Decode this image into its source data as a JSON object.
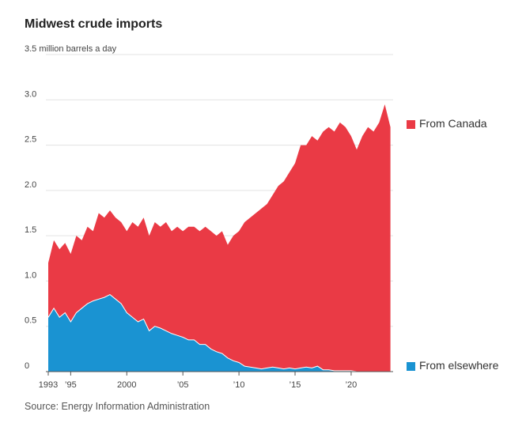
{
  "title": "Midwest crude imports",
  "source": "Source: Energy Information Administration",
  "chart_data": {
    "type": "area",
    "stacked": true,
    "title": "Midwest crude imports",
    "ylabel": "million barrels a day",
    "ytick_top_label": "3.5 million barrels a day",
    "ylim": [
      0,
      3.5
    ],
    "yticks": [
      {
        "value": 0,
        "label": "0"
      },
      {
        "value": 0.5,
        "label": "0.5"
      },
      {
        "value": 1.0,
        "label": "1.0"
      },
      {
        "value": 1.5,
        "label": "1.5"
      },
      {
        "value": 2.0,
        "label": "2.0"
      },
      {
        "value": 2.5,
        "label": "2.5"
      },
      {
        "value": 3.0,
        "label": "3.0"
      },
      {
        "value": 3.5,
        "label": "3.5 million barrels a day"
      }
    ],
    "xlim": [
      1993,
      2023.6
    ],
    "xticks": [
      {
        "value": 1993,
        "label": "1993"
      },
      {
        "value": 1995,
        "label": "’95"
      },
      {
        "value": 2000,
        "label": "2000"
      },
      {
        "value": 2005,
        "label": "’05"
      },
      {
        "value": 2010,
        "label": "’10"
      },
      {
        "value": 2015,
        "label": "’15"
      },
      {
        "value": 2020,
        "label": "’20"
      }
    ],
    "grid": true,
    "legend_placement": "right",
    "series": [
      {
        "name": "From Canada",
        "color": "#ea3a45",
        "note": "values are stacked totals (total imports)",
        "points": [
          [
            1993.0,
            1.2
          ],
          [
            1993.5,
            1.45
          ],
          [
            1994.0,
            1.35
          ],
          [
            1994.5,
            1.42
          ],
          [
            1995.0,
            1.3
          ],
          [
            1995.5,
            1.5
          ],
          [
            1996.0,
            1.45
          ],
          [
            1996.5,
            1.6
          ],
          [
            1997.0,
            1.55
          ],
          [
            1997.5,
            1.75
          ],
          [
            1998.0,
            1.7
          ],
          [
            1998.5,
            1.78
          ],
          [
            1999.0,
            1.7
          ],
          [
            1999.5,
            1.65
          ],
          [
            2000.0,
            1.55
          ],
          [
            2000.5,
            1.65
          ],
          [
            2001.0,
            1.6
          ],
          [
            2001.5,
            1.7
          ],
          [
            2002.0,
            1.5
          ],
          [
            2002.5,
            1.65
          ],
          [
            2003.0,
            1.6
          ],
          [
            2003.5,
            1.65
          ],
          [
            2004.0,
            1.55
          ],
          [
            2004.5,
            1.6
          ],
          [
            2005.0,
            1.55
          ],
          [
            2005.5,
            1.6
          ],
          [
            2006.0,
            1.6
          ],
          [
            2006.5,
            1.55
          ],
          [
            2007.0,
            1.6
          ],
          [
            2007.5,
            1.55
          ],
          [
            2008.0,
            1.5
          ],
          [
            2008.5,
            1.55
          ],
          [
            2009.0,
            1.4
          ],
          [
            2009.5,
            1.5
          ],
          [
            2010.0,
            1.55
          ],
          [
            2010.5,
            1.65
          ],
          [
            2011.0,
            1.7
          ],
          [
            2011.5,
            1.75
          ],
          [
            2012.0,
            1.8
          ],
          [
            2012.5,
            1.85
          ],
          [
            2013.0,
            1.95
          ],
          [
            2013.5,
            2.05
          ],
          [
            2014.0,
            2.1
          ],
          [
            2014.5,
            2.2
          ],
          [
            2015.0,
            2.3
          ],
          [
            2015.5,
            2.5
          ],
          [
            2016.0,
            2.5
          ],
          [
            2016.5,
            2.6
          ],
          [
            2017.0,
            2.55
          ],
          [
            2017.5,
            2.65
          ],
          [
            2018.0,
            2.7
          ],
          [
            2018.5,
            2.65
          ],
          [
            2019.0,
            2.75
          ],
          [
            2019.5,
            2.7
          ],
          [
            2020.0,
            2.6
          ],
          [
            2020.5,
            2.45
          ],
          [
            2021.0,
            2.6
          ],
          [
            2021.5,
            2.7
          ],
          [
            2022.0,
            2.65
          ],
          [
            2022.5,
            2.75
          ],
          [
            2023.0,
            2.95
          ],
          [
            2023.5,
            2.7
          ]
        ]
      },
      {
        "name": "From elsewhere",
        "color": "#1a93d2",
        "points": [
          [
            1993.0,
            0.6
          ],
          [
            1993.5,
            0.7
          ],
          [
            1994.0,
            0.6
          ],
          [
            1994.5,
            0.65
          ],
          [
            1995.0,
            0.55
          ],
          [
            1995.5,
            0.65
          ],
          [
            1996.0,
            0.7
          ],
          [
            1996.5,
            0.75
          ],
          [
            1997.0,
            0.78
          ],
          [
            1997.5,
            0.8
          ],
          [
            1998.0,
            0.82
          ],
          [
            1998.5,
            0.85
          ],
          [
            1999.0,
            0.8
          ],
          [
            1999.5,
            0.75
          ],
          [
            2000.0,
            0.65
          ],
          [
            2000.5,
            0.6
          ],
          [
            2001.0,
            0.55
          ],
          [
            2001.5,
            0.58
          ],
          [
            2002.0,
            0.45
          ],
          [
            2002.5,
            0.5
          ],
          [
            2003.0,
            0.48
          ],
          [
            2003.5,
            0.45
          ],
          [
            2004.0,
            0.42
          ],
          [
            2004.5,
            0.4
          ],
          [
            2005.0,
            0.38
          ],
          [
            2005.5,
            0.35
          ],
          [
            2006.0,
            0.35
          ],
          [
            2006.5,
            0.3
          ],
          [
            2007.0,
            0.3
          ],
          [
            2007.5,
            0.25
          ],
          [
            2008.0,
            0.22
          ],
          [
            2008.5,
            0.2
          ],
          [
            2009.0,
            0.15
          ],
          [
            2009.5,
            0.12
          ],
          [
            2010.0,
            0.1
          ],
          [
            2010.5,
            0.06
          ],
          [
            2011.0,
            0.05
          ],
          [
            2011.5,
            0.04
          ],
          [
            2012.0,
            0.03
          ],
          [
            2012.5,
            0.04
          ],
          [
            2013.0,
            0.05
          ],
          [
            2013.5,
            0.04
          ],
          [
            2014.0,
            0.03
          ],
          [
            2014.5,
            0.04
          ],
          [
            2015.0,
            0.03
          ],
          [
            2015.5,
            0.04
          ],
          [
            2016.0,
            0.05
          ],
          [
            2016.5,
            0.04
          ],
          [
            2017.0,
            0.06
          ],
          [
            2017.5,
            0.02
          ],
          [
            2018.0,
            0.02
          ],
          [
            2018.5,
            0.01
          ],
          [
            2019.0,
            0.01
          ],
          [
            2019.5,
            0.01
          ],
          [
            2020.0,
            0.01
          ],
          [
            2020.5,
            0.0
          ],
          [
            2021.0,
            0.0
          ],
          [
            2021.5,
            0.0
          ],
          [
            2022.0,
            0.0
          ],
          [
            2022.5,
            0.0
          ],
          [
            2023.0,
            0.0
          ],
          [
            2023.5,
            0.0
          ]
        ]
      }
    ]
  }
}
